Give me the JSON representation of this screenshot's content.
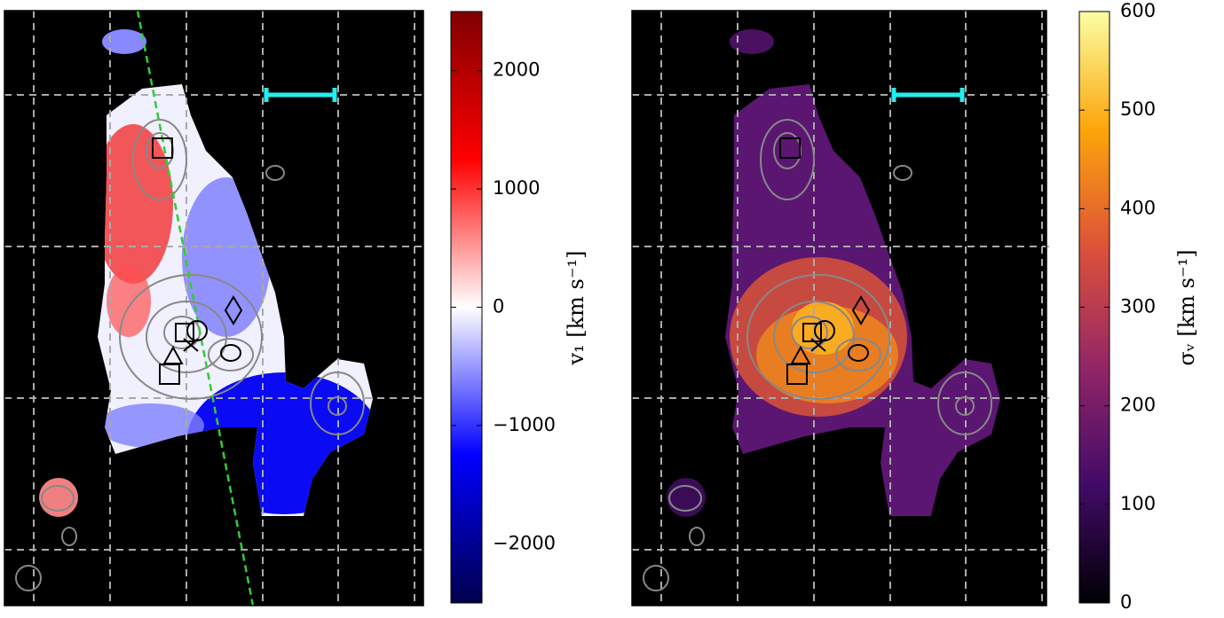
{
  "chart_data": [
    {
      "type": "heatmap",
      "colorbar_label": "v₁ [km s⁻¹]",
      "clim": [
        -2500,
        2500
      ],
      "cticks": [
        {
          "value": -2000,
          "label": "−2000"
        },
        {
          "value": -1000,
          "label": "−1000"
        },
        0,
        1000,
        2000
      ]
    },
    {
      "type": "heatmap",
      "colorbar_label": "σᵥ [km s⁻¹]",
      "clim": [
        0,
        600
      ],
      "cticks": [
        0,
        100,
        200,
        300,
        400,
        500,
        600
      ]
    }
  ]
}
